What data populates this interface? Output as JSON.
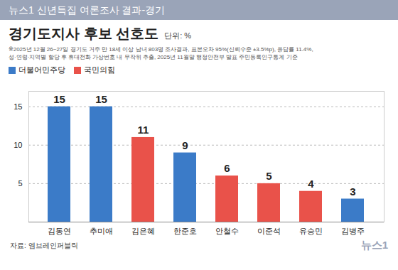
{
  "chart_data": {
    "type": "bar",
    "header": "뉴스1 신년특집 여론조사 결과-경기",
    "title": "경기도지사 후보 선호도",
    "unit": "단위: %",
    "note": [
      "※2025년 12월 26~27일 경기도 거주 만 18세 이상 남녀 803명 조사결과, 표본오차 95%(신뢰수준 ±3.5%p), 응답률 11.4%,",
      "성·연령·지역별 할당 후 휴대전화 가상번호 내 무작위 추출, 2025년 11월말 행정안전부 발표 주민등록인구통계 기준"
    ],
    "source": "자료: 엠브레인퍼블릭",
    "logo": "뉴스1",
    "categories": [
      "김동연",
      "추미애",
      "김은혜",
      "한준호",
      "안철수",
      "이준석",
      "유승민",
      "김병주"
    ],
    "series": [
      {
        "name": "더불어민주당",
        "color": "#3b7bc8",
        "values": [
          15,
          15,
          null,
          9,
          null,
          null,
          null,
          3
        ]
      },
      {
        "name": "국민의힘",
        "color": "#e9524a",
        "values": [
          null,
          null,
          11,
          null,
          6,
          5,
          4,
          null
        ]
      }
    ],
    "ylim": [
      0,
      17
    ],
    "yticks": [
      5,
      10,
      15
    ],
    "grid": true,
    "data_labels": true,
    "legend": "top-left"
  }
}
